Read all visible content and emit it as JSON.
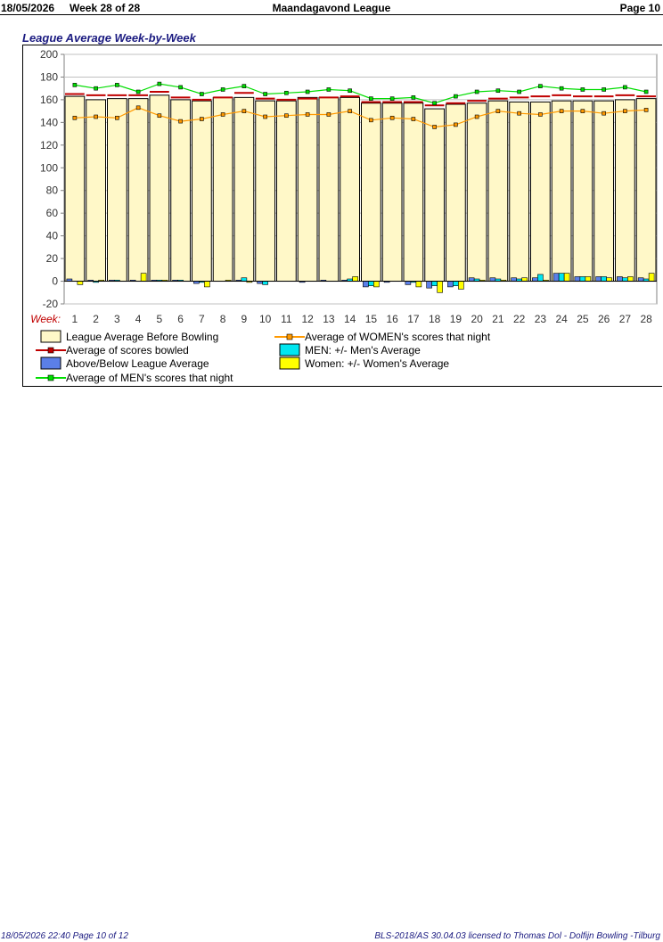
{
  "header": {
    "date": "18/05/2026",
    "week": "Week 28 of 28",
    "title": "Maandagavond League",
    "page": "Page 10"
  },
  "footer": {
    "left": "18/05/2026  22:40  Page 10 of 12",
    "right": "BLS-2018/AS 30.04.03 licensed to Thomas Dol - Dolfijn Bowling -Tilburg"
  },
  "colors": {
    "league_avg_fill": "#fff8c8",
    "scores_line": "#c00000",
    "women_line": "#ff9900",
    "men_line": "#00dd00",
    "above_below": "#5b7fe8",
    "men_diff": "#00e6f0",
    "women_diff": "#ffff00",
    "grid": "#c0c0c0"
  },
  "chart_data": {
    "type": "bar",
    "title": "League Average Week-by-Week",
    "xlabel": "Week:",
    "ylim": [
      -20,
      200
    ],
    "yticks": [
      -20,
      0,
      20,
      40,
      60,
      80,
      100,
      120,
      140,
      160,
      180,
      200
    ],
    "grid": true,
    "legend_position": "bottom",
    "categories": [
      "1",
      "2",
      "3",
      "4",
      "5",
      "6",
      "7",
      "8",
      "9",
      "10",
      "11",
      "12",
      "13",
      "14",
      "15",
      "16",
      "17",
      "18",
      "19",
      "20",
      "21",
      "22",
      "23",
      "24",
      "25",
      "26",
      "27",
      "28"
    ],
    "series": [
      {
        "name": "League Average Before Bowling",
        "kind": "bar",
        "values": [
          163,
          160,
          161,
          161,
          164,
          160,
          159,
          162,
          162,
          159,
          159,
          162,
          162,
          162,
          157,
          157,
          157,
          152,
          156,
          157,
          159,
          158,
          158,
          159,
          159,
          159,
          160,
          161
        ]
      },
      {
        "name": "Average of scores bowled",
        "kind": "line-step",
        "values": [
          165,
          164,
          164,
          164,
          167,
          162,
          160,
          162,
          166,
          161,
          160,
          161,
          162,
          163,
          158,
          158,
          158,
          155,
          157,
          159,
          161,
          162,
          163,
          164,
          163,
          163,
          164,
          163
        ]
      },
      {
        "name": "Above/Below League Average",
        "kind": "bar",
        "values": [
          2,
          1,
          1,
          1,
          1,
          1,
          -2,
          0,
          1,
          -2,
          0,
          -1,
          1,
          1,
          -5,
          -1,
          -3,
          -6,
          -5,
          3,
          3,
          3,
          3,
          7,
          4,
          4,
          4,
          3
        ]
      },
      {
        "name": "MEN: +/- Men's Average",
        "kind": "bar",
        "values": [
          0,
          -1,
          1,
          0,
          1,
          1,
          -1,
          0,
          3,
          -3,
          0,
          0,
          0,
          2,
          -4,
          0,
          -1,
          -4,
          -4,
          2,
          2,
          2,
          6,
          7,
          4,
          4,
          3,
          2
        ]
      },
      {
        "name": "Women: +/- Women's Average",
        "kind": "bar",
        "values": [
          -3,
          1,
          0,
          7,
          1,
          0,
          -5,
          1,
          -1,
          0,
          0,
          0,
          0,
          4,
          -5,
          0,
          -5,
          -10,
          -7,
          1,
          1,
          3,
          1,
          7,
          4,
          3,
          4,
          7
        ]
      },
      {
        "name": "Average of WOMEN's scores that night",
        "kind": "line",
        "values": [
          144,
          145,
          144,
          153,
          146,
          141,
          143,
          147,
          150,
          145,
          146,
          147,
          147,
          150,
          142,
          144,
          143,
          136,
          138,
          145,
          150,
          148,
          147,
          150,
          150,
          148,
          150,
          151
        ]
      },
      {
        "name": "Average of MEN's scores that night",
        "kind": "line",
        "values": [
          173,
          170,
          173,
          167,
          174,
          171,
          165,
          169,
          172,
          165,
          166,
          167,
          169,
          168,
          161,
          161,
          162,
          157,
          163,
          167,
          168,
          167,
          172,
          170,
          169,
          169,
          171,
          167
        ]
      }
    ]
  }
}
